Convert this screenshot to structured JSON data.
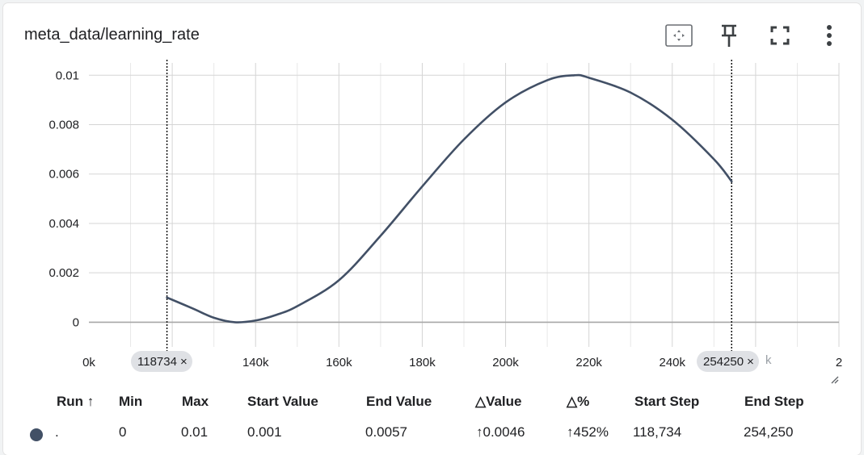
{
  "card": {
    "title": "meta_data/learning_rate"
  },
  "toolbar": {
    "fit_domain_icon": "fit-domain-icon",
    "pin_icon": "pin-icon",
    "fullscreen_icon": "fullscreen-icon",
    "more_icon": "more-vert-icon"
  },
  "chart_data": {
    "type": "line",
    "series": [
      {
        "color": "#425066",
        "x": [
          118734,
          125000,
          130000,
          135000,
          140000,
          145000,
          150000,
          160000,
          170000,
          180000,
          190000,
          200000,
          210000,
          216500,
          220000,
          230000,
          240000,
          250000,
          254250
        ],
        "y": [
          0.001,
          0.00055,
          0.00018,
          0.0,
          7e-05,
          0.0003,
          0.00065,
          0.0017,
          0.0035,
          0.0055,
          0.0074,
          0.0089,
          0.0098,
          0.01,
          0.0099,
          0.0093,
          0.0082,
          0.0066,
          0.0057
        ]
      }
    ],
    "xlim": [
      100000,
      280000
    ],
    "ylim": [
      -0.001,
      0.0105
    ],
    "yticks": [
      "0",
      "0.002",
      "0.004",
      "0.006",
      "0.008",
      "0.01"
    ],
    "ytick_values": [
      0,
      0.002,
      0.004,
      0.006,
      0.008,
      0.01
    ],
    "xticks": [
      "0k",
      "140k",
      "160k",
      "180k",
      "200k",
      "220k",
      "240k",
      "2"
    ],
    "xtick_values": [
      100000,
      140000,
      160000,
      180000,
      200000,
      220000,
      240000,
      280000
    ],
    "faded_xtick_labels": [
      "0k",
      "2"
    ],
    "grid": true,
    "range_markers": [
      118734,
      254250
    ]
  },
  "range_chips": {
    "start_label": "118734",
    "end_label": "254250",
    "close_glyph": "×",
    "hidden_tick_tail": "k"
  },
  "table": {
    "headers": {
      "run": "Run ↑",
      "min": "Min",
      "max": "Max",
      "start_value": "Start Value",
      "end_value": "End Value",
      "delta_value": "△Value",
      "delta_pct": "△%",
      "start_step": "Start Step",
      "end_step": "End Step"
    },
    "rows": [
      {
        "color": "#425066",
        "run": ".",
        "min": "0",
        "max": "0.01",
        "start_value": "0.001",
        "end_value": "0.0057",
        "delta_value": "↑0.0046",
        "delta_pct": "↑452%",
        "start_step": "118,734",
        "end_step": "254,250"
      }
    ]
  }
}
